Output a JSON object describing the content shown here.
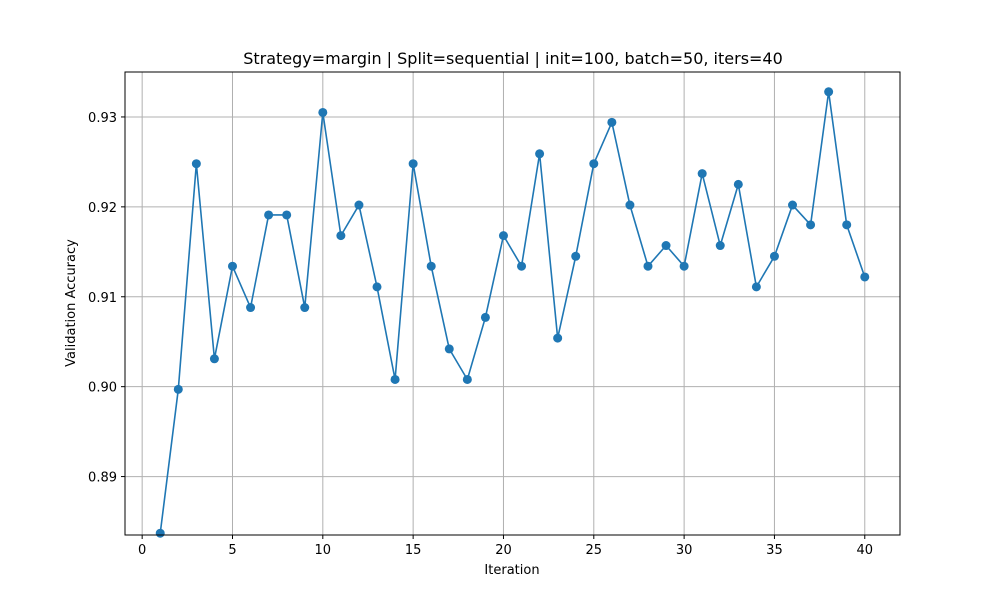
{
  "chart_data": {
    "type": "line",
    "title": "Strategy=margin | Split=sequential | init=100, batch=50, iters=40",
    "xlabel": "Iteration",
    "ylabel": "Validation Accuracy",
    "xlim": [
      -0.95,
      41.95
    ],
    "ylim": [
      0.8835,
      0.935
    ],
    "xticks": [
      0,
      5,
      10,
      15,
      20,
      25,
      30,
      35,
      40
    ],
    "xtick_labels": [
      "0",
      "5",
      "10",
      "15",
      "20",
      "25",
      "30",
      "35",
      "40"
    ],
    "yticks": [
      0.89,
      0.9,
      0.91,
      0.92,
      0.93
    ],
    "ytick_labels": [
      "0.89",
      "0.90",
      "0.91",
      "0.92",
      "0.93"
    ],
    "grid": true,
    "marker": "circle",
    "color": "#1f77b4",
    "x": [
      1,
      2,
      3,
      4,
      5,
      6,
      7,
      8,
      9,
      10,
      11,
      12,
      13,
      14,
      15,
      16,
      17,
      18,
      19,
      20,
      21,
      22,
      23,
      24,
      25,
      26,
      27,
      28,
      29,
      30,
      31,
      32,
      33,
      34,
      35,
      36,
      37,
      38,
      39,
      40
    ],
    "series": [
      {
        "values": [
          0.8837,
          0.8997,
          0.9248,
          0.9031,
          0.9134,
          0.9088,
          0.9191,
          0.9191,
          0.9088,
          0.9305,
          0.9168,
          0.9202,
          0.9111,
          0.9008,
          0.9248,
          0.9134,
          0.9042,
          0.9008,
          0.9077,
          0.9168,
          0.9134,
          0.9259,
          0.9054,
          0.9145,
          0.9248,
          0.9294,
          0.9202,
          0.9134,
          0.9157,
          0.9134,
          0.9237,
          0.9157,
          0.9225,
          0.9111,
          0.9145,
          0.9202,
          0.918,
          0.9328,
          0.918,
          0.9122
        ]
      }
    ]
  }
}
